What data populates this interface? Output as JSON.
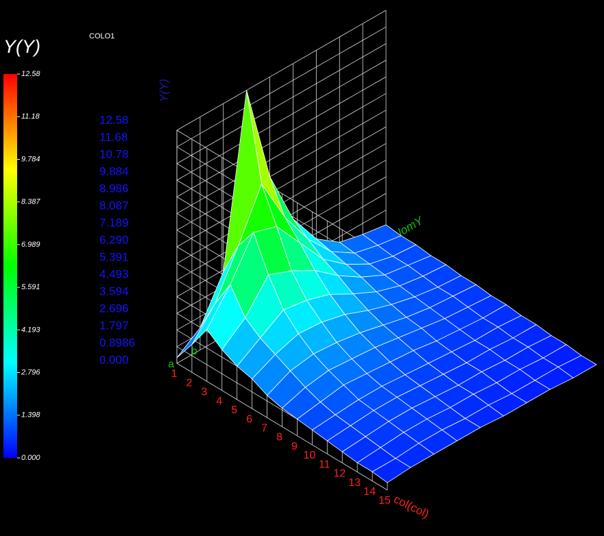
{
  "chart_data": {
    "type": "surface",
    "title": "COLO1",
    "x_label": "col(col)",
    "y_label": "NomY",
    "z_label": "Y(Y)",
    "categories": [
      "1",
      "2",
      "3",
      "4",
      "5",
      "6",
      "7",
      "8",
      "9",
      "10",
      "11",
      "12",
      "13",
      "14",
      "15"
    ],
    "y_categories": [
      "a",
      "b",
      null,
      null,
      null,
      null,
      null,
      null,
      null,
      null
    ],
    "z": [
      [
        0.3,
        1.5,
        2.8,
        2.2,
        1.8,
        1.6,
        1.2,
        1.0,
        0.9,
        0.8,
        0.7,
        0.6,
        0.5,
        0.5,
        0.4
      ],
      [
        1.2,
        3.0,
        4.5,
        3.2,
        2.6,
        2.2,
        1.8,
        1.4,
        1.1,
        0.9,
        0.8,
        0.7,
        0.6,
        0.5,
        0.5
      ],
      [
        3.5,
        5.4,
        6.6,
        4.8,
        3.4,
        2.6,
        2.0,
        1.6,
        1.3,
        1.0,
        0.9,
        0.8,
        0.7,
        0.6,
        0.5
      ],
      [
        12.58,
        8.0,
        6.2,
        4.3,
        3.2,
        2.5,
        1.9,
        1.5,
        1.2,
        1.0,
        0.9,
        0.8,
        0.7,
        0.6,
        0.5
      ],
      [
        7.2,
        5.5,
        4.6,
        3.6,
        2.8,
        2.2,
        1.7,
        1.4,
        1.1,
        0.9,
        0.8,
        0.7,
        0.6,
        0.5,
        0.5
      ],
      [
        4.2,
        3.6,
        3.0,
        2.6,
        2.1,
        1.7,
        1.4,
        1.2,
        1.0,
        0.8,
        0.7,
        0.6,
        0.6,
        0.5,
        0.4
      ],
      [
        2.4,
        2.2,
        2.0,
        1.8,
        1.5,
        1.3,
        1.1,
        1.0,
        0.8,
        0.7,
        0.6,
        0.6,
        0.5,
        0.4,
        0.4
      ],
      [
        1.5,
        1.4,
        1.3,
        1.2,
        1.1,
        1.0,
        0.9,
        0.8,
        0.7,
        0.6,
        0.6,
        0.5,
        0.5,
        0.4,
        0.4
      ],
      [
        1.2,
        1.1,
        1.0,
        1.0,
        0.9,
        0.8,
        0.8,
        0.7,
        0.6,
        0.6,
        0.5,
        0.5,
        0.4,
        0.4,
        0.3
      ],
      [
        1.0,
        0.9,
        0.9,
        0.8,
        0.8,
        0.7,
        0.7,
        0.6,
        0.6,
        0.5,
        0.5,
        0.4,
        0.4,
        0.3,
        0.3
      ]
    ],
    "zlim": [
      0,
      12.58
    ],
    "zticks": [
      12.58,
      11.68,
      10.78,
      9.884,
      8.986,
      8.087,
      7.189,
      {
        "value": 6.29,
        "label": "6.290"
      },
      5.391,
      4.493,
      3.594,
      2.696,
      1.797,
      0.8986,
      {
        "value": 0,
        "label": "0.000"
      }
    ],
    "grid": true,
    "colorbar": {
      "title": "Y(Y)",
      "clim": [
        0,
        12.58
      ],
      "ticks": [
        {
          "value": 0,
          "label": "0.000"
        },
        1.398,
        2.796,
        4.193,
        5.591,
        6.989,
        8.387,
        9.784,
        11.18,
        12.58
      ],
      "colors": [
        "#0000ff",
        "#00ffff",
        "#00ff00",
        "#ffff00",
        "#ff0000"
      ]
    }
  }
}
